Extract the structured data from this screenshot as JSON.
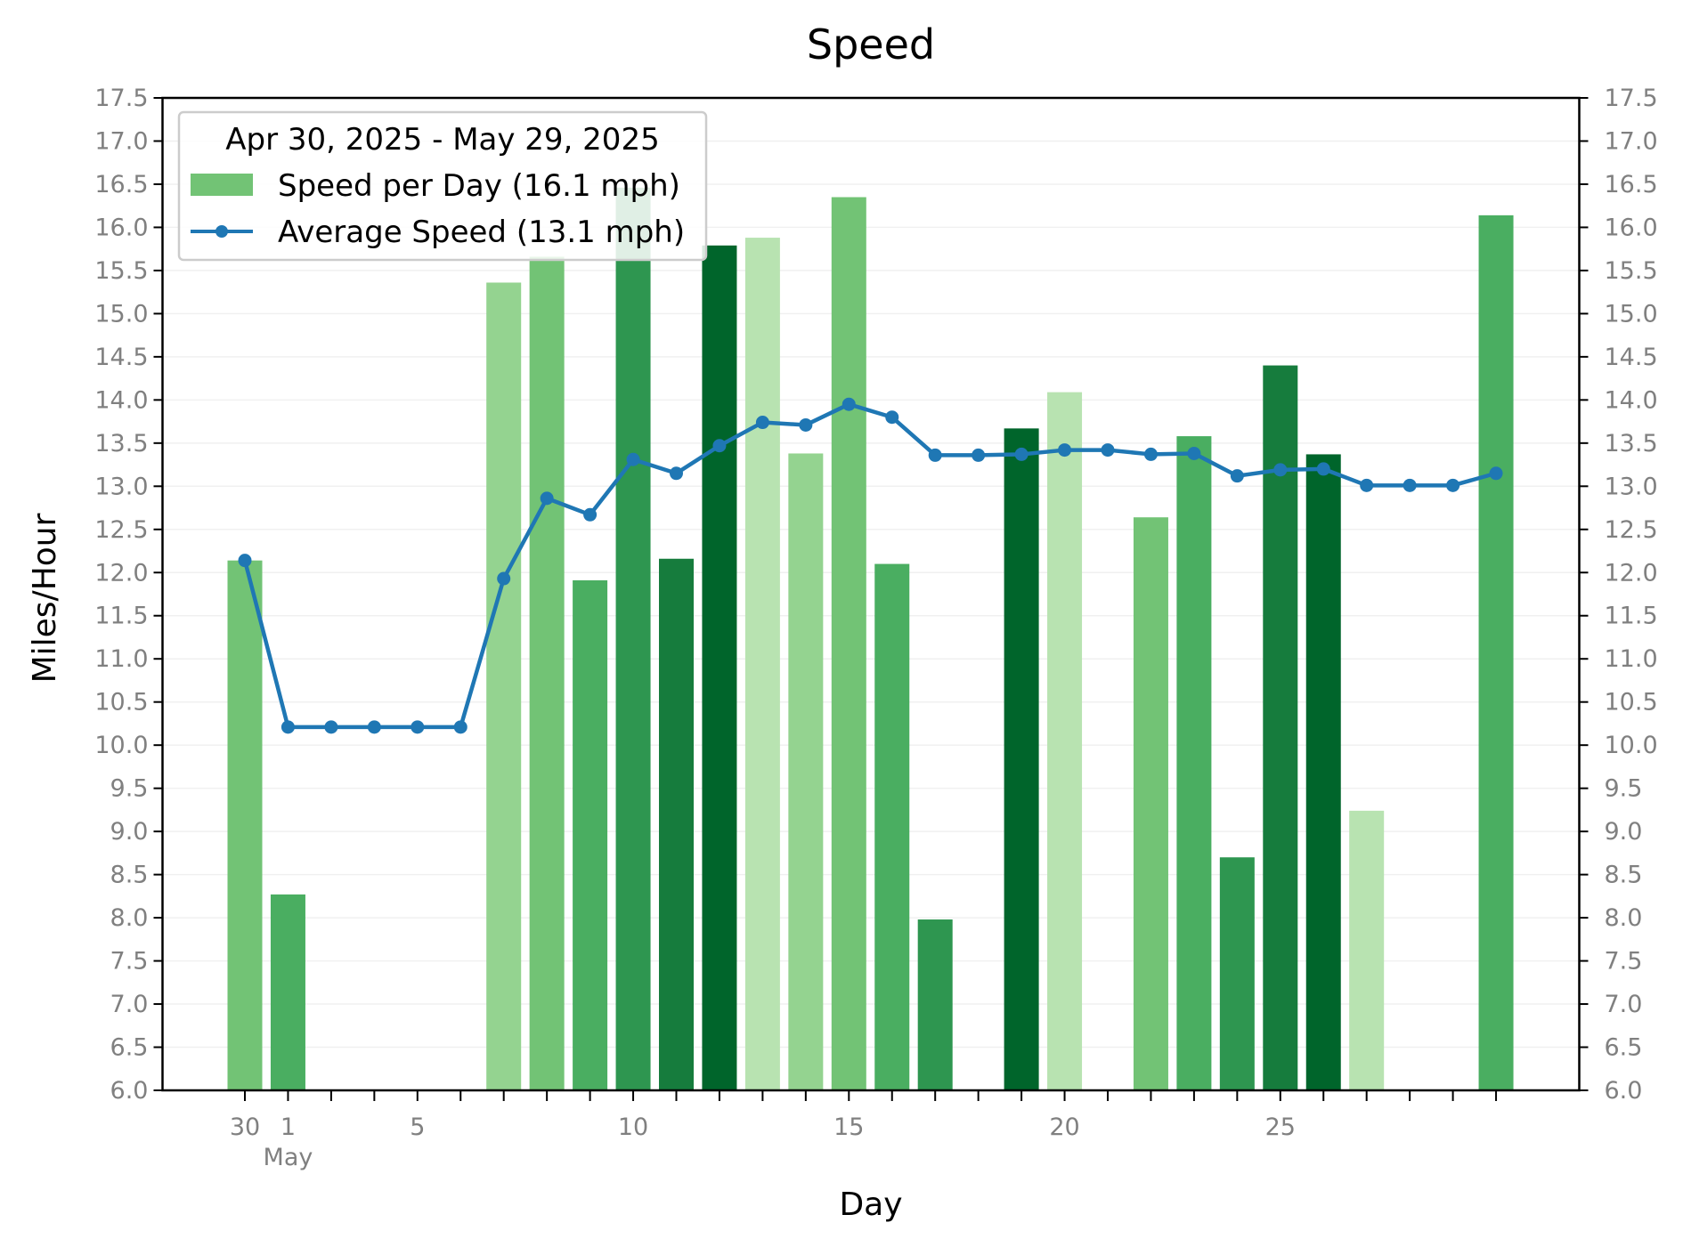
{
  "chart_data": {
    "type": "bar",
    "title": "Speed",
    "xlabel": "Day",
    "ylabel": "Miles/Hour",
    "ylim": [
      6.0,
      17.5
    ],
    "yticks": [
      "6.0",
      "6.5",
      "7.0",
      "7.5",
      "8.0",
      "8.5",
      "9.0",
      "9.5",
      "10.0",
      "10.5",
      "11.0",
      "11.5",
      "12.0",
      "12.5",
      "13.0",
      "13.5",
      "14.0",
      "14.5",
      "15.0",
      "15.5",
      "16.0",
      "16.5",
      "17.0",
      "17.5"
    ],
    "xtick_labels": [
      {
        "day": 1,
        "label": "30"
      },
      {
        "day": 2,
        "label": "1"
      },
      {
        "day": 5,
        "label": "5"
      },
      {
        "day": 10,
        "label": "10"
      },
      {
        "day": 15,
        "label": "15"
      },
      {
        "day": 20,
        "label": "20"
      },
      {
        "day": 25,
        "label": "25"
      }
    ],
    "month_label": {
      "day": 2,
      "label": "May"
    },
    "legend": {
      "title": "Apr 30, 2025 - May 29, 2025",
      "location": "upper-left",
      "bar_label": "Speed per Day (16.1 mph)",
      "line_label": "Average Speed (13.1 mph)"
    },
    "colors": {
      "line": "#1f77b4",
      "bar_shades": [
        "#b8e3b1",
        "#94d390",
        "#72c375",
        "#4aae61",
        "#2e9650",
        "#167c3d",
        "#00652b"
      ]
    },
    "grid": true,
    "days": [
      "2025-04-30",
      "2025-05-01",
      "2025-05-02",
      "2025-05-03",
      "2025-05-04",
      "2025-05-05",
      "2025-05-06",
      "2025-05-07",
      "2025-05-08",
      "2025-05-09",
      "2025-05-10",
      "2025-05-11",
      "2025-05-12",
      "2025-05-13",
      "2025-05-14",
      "2025-05-15",
      "2025-05-16",
      "2025-05-17",
      "2025-05-18",
      "2025-05-19",
      "2025-05-20",
      "2025-05-21",
      "2025-05-22",
      "2025-05-23",
      "2025-05-24",
      "2025-05-25",
      "2025-05-26",
      "2025-05-27",
      "2025-05-28",
      "2025-05-29"
    ],
    "series": [
      {
        "name": "Speed per Day (16.1 mph)",
        "type": "bar",
        "values": [
          12.14,
          8.27,
          null,
          null,
          null,
          null,
          15.36,
          15.66,
          11.91,
          16.46,
          12.16,
          15.79,
          15.88,
          13.38,
          16.35,
          12.1,
          7.98,
          null,
          13.67,
          14.09,
          null,
          12.64,
          13.58,
          8.7,
          14.4,
          13.37,
          9.24,
          null,
          null,
          16.14
        ],
        "shades": [
          2,
          3,
          null,
          null,
          null,
          null,
          1,
          2,
          3,
          4,
          5,
          6,
          0,
          1,
          2,
          3,
          4,
          null,
          6,
          0,
          null,
          2,
          3,
          4,
          5,
          6,
          0,
          null,
          null,
          3
        ]
      },
      {
        "name": "Average Speed (13.1 mph)",
        "type": "line",
        "values": [
          12.14,
          10.21,
          10.21,
          10.21,
          10.21,
          10.21,
          11.93,
          12.86,
          12.67,
          13.31,
          13.15,
          13.47,
          13.74,
          13.71,
          13.95,
          13.8,
          13.36,
          13.36,
          13.37,
          13.42,
          13.42,
          13.37,
          13.38,
          13.12,
          13.19,
          13.2,
          13.01,
          13.01,
          13.01,
          13.15
        ]
      }
    ]
  }
}
